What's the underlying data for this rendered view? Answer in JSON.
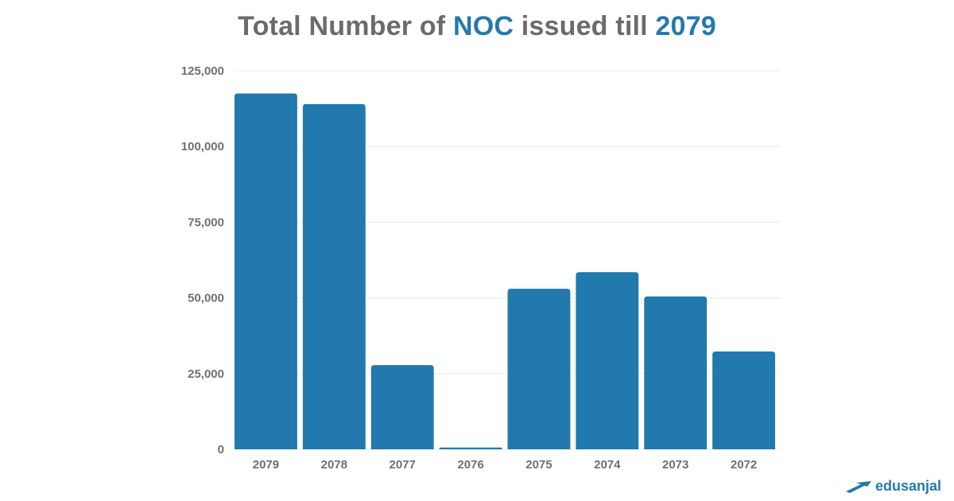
{
  "title": {
    "part1": "Total Number of ",
    "part2": "NOC",
    "part3": " issued till ",
    "part4": "2079"
  },
  "colors": {
    "bar": "#2179ad",
    "accent": "#2479ad",
    "grid": "#ececec",
    "text": "#6b6b6b"
  },
  "chart_data": {
    "type": "bar",
    "categories": [
      "2079",
      "2078",
      "2077",
      "2076",
      "2075",
      "2074",
      "2073",
      "2072"
    ],
    "values": [
      117500,
      114000,
      27800,
      600,
      53000,
      58500,
      50500,
      32300
    ],
    "ylim": [
      0,
      125000
    ],
    "yticks": [
      0,
      25000,
      50000,
      75000,
      100000,
      125000
    ],
    "ytick_labels": [
      "0",
      "25,000",
      "50,000",
      "75,000",
      "100,000",
      "125,000"
    ],
    "grid": true,
    "xlabel": "",
    "ylabel": ""
  },
  "logo": {
    "text": "edusanjal",
    "icon": "graduation-cap-icon"
  }
}
